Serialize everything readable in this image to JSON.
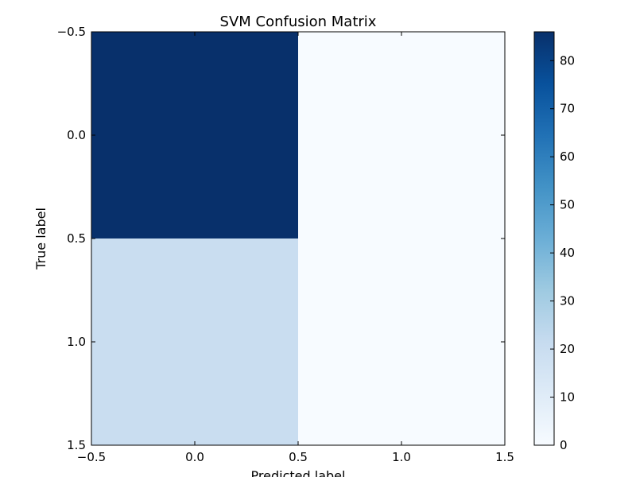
{
  "chart_data": {
    "type": "heatmap",
    "title": "SVM Confusion Matrix",
    "xlabel": "Predicted label",
    "ylabel": "True label",
    "xlim": [
      -0.5,
      1.5
    ],
    "ylim": [
      1.5,
      -0.5
    ],
    "y_axis_inverted": true,
    "x_ticks": [
      {
        "value": -0.5,
        "label": "−0.5"
      },
      {
        "value": 0.0,
        "label": "0.0"
      },
      {
        "value": 0.5,
        "label": "0.5"
      },
      {
        "value": 1.0,
        "label": "1.0"
      },
      {
        "value": 1.5,
        "label": "1.5"
      }
    ],
    "y_ticks": [
      {
        "value": -0.5,
        "label": "−0.5"
      },
      {
        "value": 0.0,
        "label": "0.0"
      },
      {
        "value": 0.5,
        "label": "0.5"
      },
      {
        "value": 1.0,
        "label": "1.0"
      },
      {
        "value": 1.5,
        "label": "1.5"
      }
    ],
    "matrix": [
      [
        86,
        0
      ],
      [
        20,
        0
      ]
    ],
    "colormap": "Blues",
    "colorbar": {
      "min": 0,
      "max": 86,
      "ticks": [
        {
          "value": 0,
          "label": "0"
        },
        {
          "value": 10,
          "label": "10"
        },
        {
          "value": 20,
          "label": "20"
        },
        {
          "value": 30,
          "label": "30"
        },
        {
          "value": 40,
          "label": "40"
        },
        {
          "value": 50,
          "label": "50"
        },
        {
          "value": 60,
          "label": "60"
        },
        {
          "value": 70,
          "label": "70"
        },
        {
          "value": 80,
          "label": "80"
        }
      ]
    },
    "grid": false
  }
}
